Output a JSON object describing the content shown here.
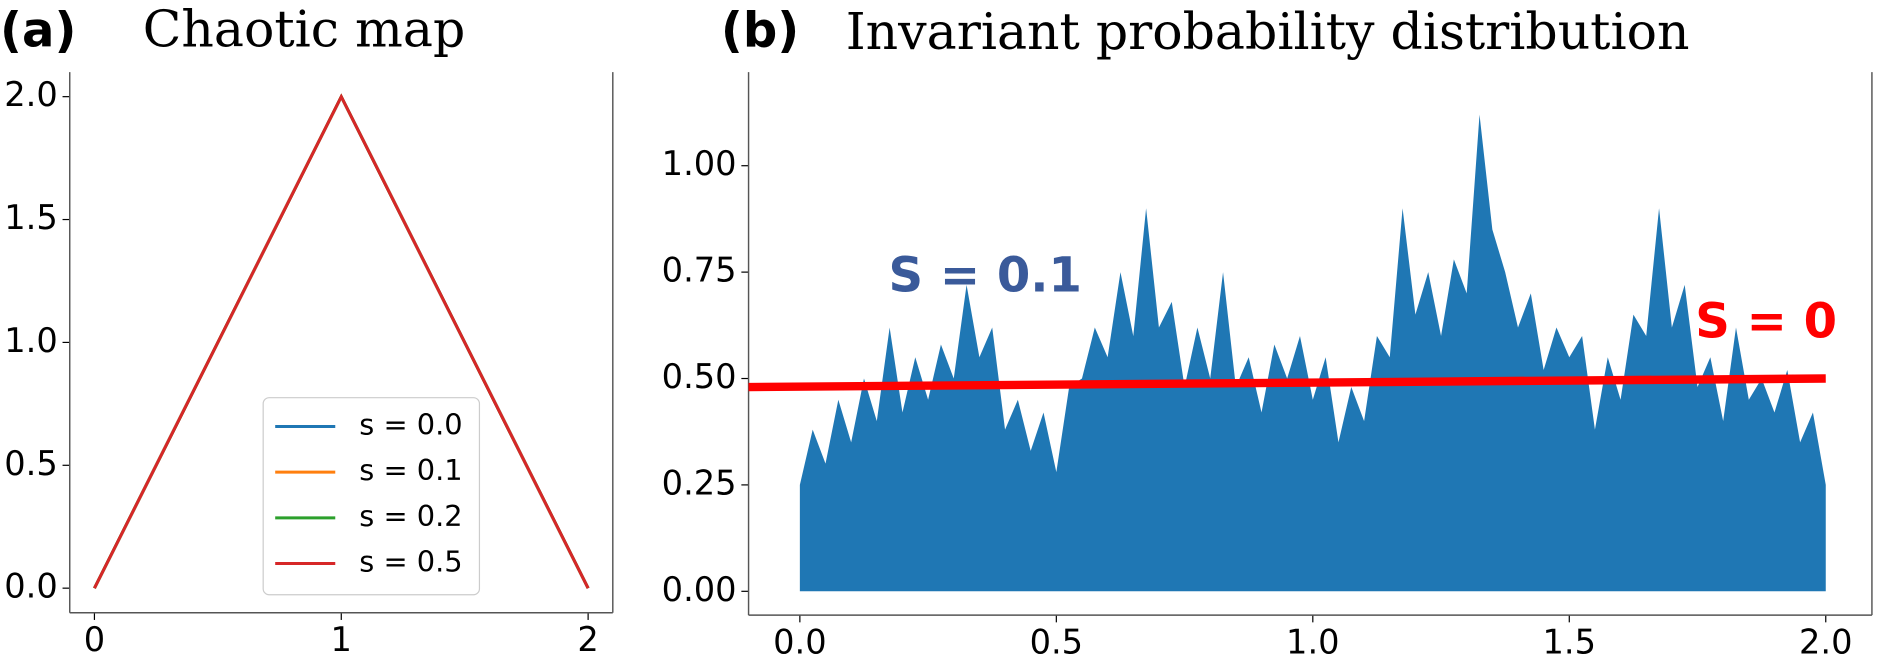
{
  "chart_data": [
    {
      "type": "line",
      "panel_label": "(a)",
      "title": "Chaotic map",
      "x": [
        0,
        1,
        2
      ],
      "series": [
        {
          "name": "s = 0.0",
          "color": "#1f77b4",
          "values": [
            0,
            2,
            0
          ]
        },
        {
          "name": "s = 0.1",
          "color": "#ff7f0e",
          "values": [
            0,
            2,
            0
          ]
        },
        {
          "name": "s = 0.2",
          "color": "#2ca02c",
          "values": [
            0,
            2,
            0
          ]
        },
        {
          "name": "s = 0.5",
          "color": "#d62728",
          "values": [
            0,
            2,
            0
          ]
        }
      ],
      "xlim": [
        -0.1,
        2.1
      ],
      "ylim": [
        -0.1,
        2.1
      ],
      "xticks": [
        0,
        1,
        2
      ],
      "yticks": [
        {
          "value": 0,
          "label": "0.0"
        },
        0.5,
        {
          "value": 1,
          "label": "1.0"
        },
        1.5,
        {
          "value": 2,
          "label": "2.0"
        }
      ],
      "legend": "lower center"
    },
    {
      "type": "area",
      "panel_label": "(b)",
      "title": "Invariant probability distribution",
      "series": [
        {
          "kind": "area",
          "color": "#1f77b4",
          "x": [
            0,
            0.025,
            0.05,
            0.075,
            0.1,
            0.125,
            0.15,
            0.175,
            0.2,
            0.225,
            0.25,
            0.275,
            0.3,
            0.325,
            0.35,
            0.375,
            0.4,
            0.425,
            0.45,
            0.475,
            0.5,
            0.525,
            0.55,
            0.575,
            0.6,
            0.625,
            0.65,
            0.675,
            0.7,
            0.725,
            0.75,
            0.775,
            0.8,
            0.825,
            0.85,
            0.875,
            0.9,
            0.925,
            0.95,
            0.975,
            1.0,
            1.025,
            1.05,
            1.075,
            1.1,
            1.125,
            1.15,
            1.175,
            1.2,
            1.225,
            1.25,
            1.275,
            1.3,
            1.325,
            1.35,
            1.375,
            1.4,
            1.425,
            1.45,
            1.475,
            1.5,
            1.525,
            1.55,
            1.575,
            1.6,
            1.625,
            1.65,
            1.675,
            1.7,
            1.725,
            1.75,
            1.775,
            1.8,
            1.825,
            1.85,
            1.875,
            1.9,
            1.925,
            1.95,
            1.975,
            2.0
          ],
          "values": [
            0.25,
            0.38,
            0.3,
            0.45,
            0.35,
            0.5,
            0.4,
            0.62,
            0.42,
            0.55,
            0.45,
            0.58,
            0.5,
            0.72,
            0.55,
            0.62,
            0.38,
            0.45,
            0.33,
            0.42,
            0.28,
            0.48,
            0.5,
            0.62,
            0.55,
            0.75,
            0.6,
            0.9,
            0.62,
            0.68,
            0.48,
            0.62,
            0.5,
            0.75,
            0.48,
            0.55,
            0.42,
            0.58,
            0.5,
            0.6,
            0.45,
            0.55,
            0.35,
            0.48,
            0.4,
            0.6,
            0.55,
            0.9,
            0.65,
            0.75,
            0.6,
            0.78,
            0.7,
            1.12,
            0.85,
            0.75,
            0.62,
            0.7,
            0.52,
            0.62,
            0.55,
            0.6,
            0.38,
            0.55,
            0.45,
            0.65,
            0.6,
            0.9,
            0.62,
            0.72,
            0.48,
            0.55,
            0.4,
            0.62,
            0.45,
            0.5,
            0.42,
            0.52,
            0.35,
            0.42,
            0.25
          ]
        },
        {
          "kind": "line",
          "color": "#ff0000",
          "x": [
            -0.1,
            2.0
          ],
          "values": [
            0.48,
            0.5
          ]
        }
      ],
      "annotations": [
        {
          "text": "S = 0.1",
          "color": "#3a5a9a"
        },
        {
          "text": "S = 0",
          "color": "#ff0000"
        }
      ],
      "xlim": [
        -0.1,
        2.09
      ],
      "ylim": [
        -0.056,
        1.22
      ],
      "xticks": [
        {
          "value": 0,
          "label": "0.0"
        },
        0.5,
        {
          "value": 1,
          "label": "1.0"
        },
        1.5,
        {
          "value": 2,
          "label": "2.0"
        }
      ],
      "yticks": [
        {
          "value": 0,
          "label": "0.00"
        },
        {
          "value": 0.25,
          "label": "0.25"
        },
        {
          "value": 0.5,
          "label": "0.50"
        },
        {
          "value": 0.75,
          "label": "0.75"
        },
        {
          "value": 1,
          "label": "1.00"
        }
      ]
    }
  ]
}
